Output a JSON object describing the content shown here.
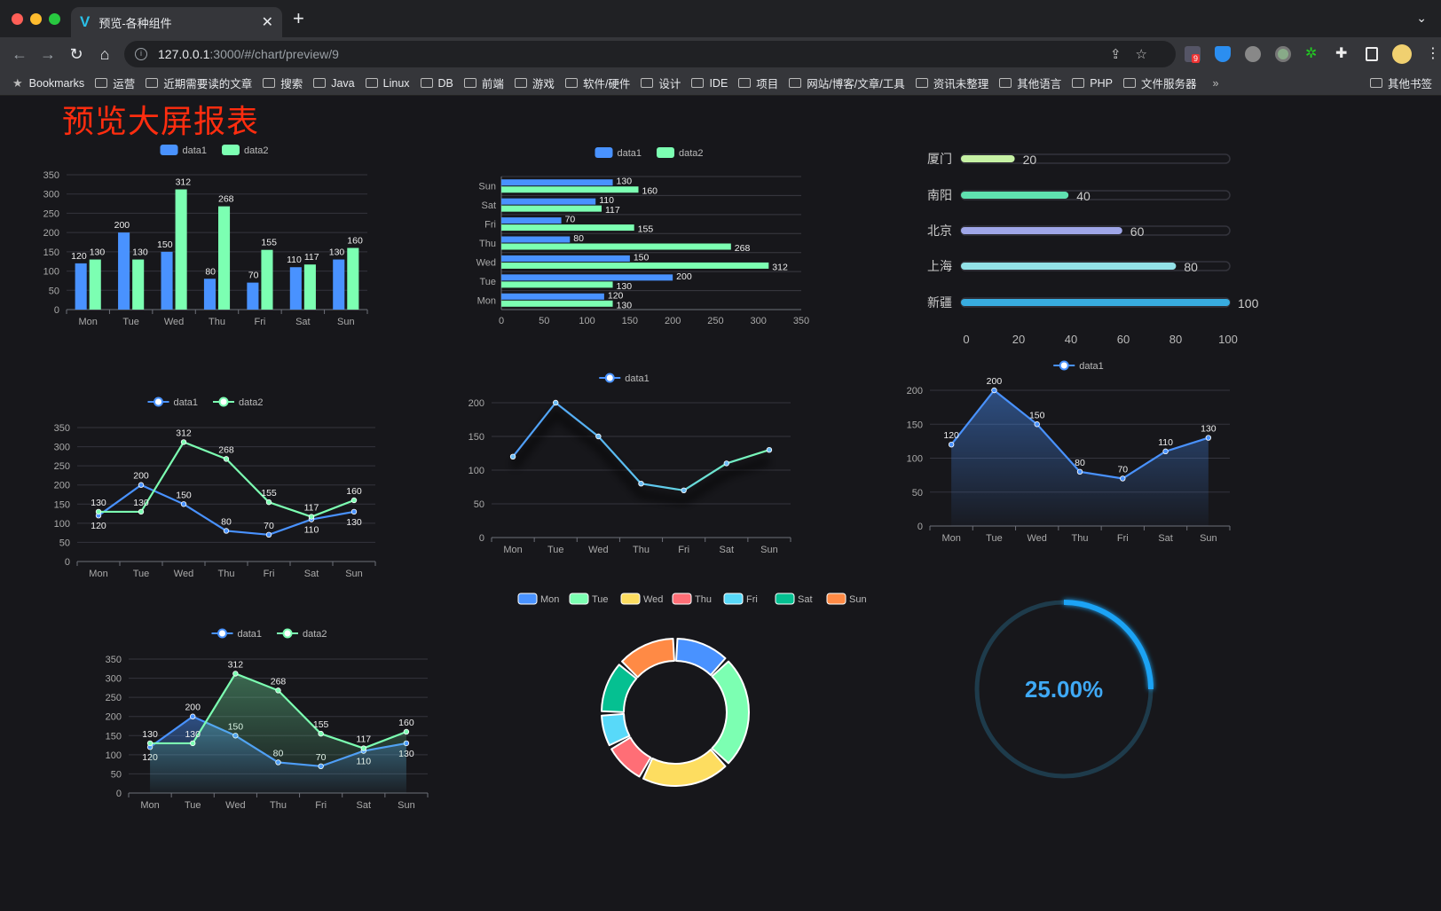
{
  "browser": {
    "tab_title": "预览-各种组件",
    "url_host": "127.0.0.1",
    "url_rest": ":3000/#/chart/preview/9",
    "extension_badge": "9",
    "bookmarks_label": "Bookmarks",
    "bookmarks": [
      "运营",
      "近期需要读的文章",
      "搜索",
      "Java",
      "Linux",
      "DB",
      "前端",
      "游戏",
      "软件/硬件",
      "设计",
      "IDE",
      "项目",
      "网站/博客/文章/工具",
      "资讯未整理",
      "其他语言",
      "PHP",
      "文件服务器"
    ],
    "more": "»",
    "other_bookmarks": "其他书签"
  },
  "page": {
    "title": "预览大屏报表"
  },
  "colors": {
    "data1": "#4992ff",
    "data2": "#7cffb2",
    "title": "#ff2d0f",
    "gauge": "#1aa3f5",
    "gauge_track": "#1e3b4b"
  },
  "chart_data": [
    {
      "type": "bar",
      "orientation": "vertical",
      "categories": [
        "Mon",
        "Tue",
        "Wed",
        "Thu",
        "Fri",
        "Sat",
        "Sun"
      ],
      "series": [
        {
          "name": "data1",
          "values": [
            120,
            200,
            150,
            80,
            70,
            110,
            130
          ]
        },
        {
          "name": "data2",
          "values": [
            130,
            130,
            312,
            268,
            155,
            117,
            160
          ]
        }
      ],
      "ylim": [
        0,
        350
      ],
      "yticks": [
        "0",
        "50",
        "100",
        "150",
        "200",
        "250",
        "300",
        "350"
      ],
      "legend": "top-center",
      "grid": true
    },
    {
      "type": "bar",
      "orientation": "horizontal",
      "categories": [
        "Mon",
        "Tue",
        "Wed",
        "Thu",
        "Fri",
        "Sat",
        "Sun"
      ],
      "series": [
        {
          "name": "data1",
          "values": [
            120,
            200,
            150,
            80,
            70,
            110,
            130
          ]
        },
        {
          "name": "data2",
          "values": [
            130,
            130,
            312,
            268,
            155,
            117,
            160
          ]
        }
      ],
      "xlim": [
        0,
        350
      ],
      "xticks": [
        "0",
        "50",
        "100",
        "150",
        "200",
        "250",
        "300",
        "350"
      ],
      "legend": "top-center",
      "grid": true
    },
    {
      "type": "bar",
      "orientation": "horizontal-progress",
      "categories": [
        "厦门",
        "南阳",
        "北京",
        "上海",
        "新疆"
      ],
      "values": [
        20,
        40,
        60,
        80,
        100
      ],
      "colors": [
        "#c6f1a4",
        "#5fe0b0",
        "#9fa6e8",
        "#93e2e8",
        "#38ace0"
      ],
      "xlim": [
        0,
        100
      ],
      "xticks": [
        "0",
        "20",
        "40",
        "60",
        "80",
        "100"
      ]
    },
    {
      "type": "line",
      "categories": [
        "Mon",
        "Tue",
        "Wed",
        "Thu",
        "Fri",
        "Sat",
        "Sun"
      ],
      "series": [
        {
          "name": "data1",
          "values": [
            120,
            200,
            150,
            80,
            70,
            110,
            130
          ]
        },
        {
          "name": "data2",
          "values": [
            130,
            130,
            312,
            268,
            155,
            117,
            160
          ]
        }
      ],
      "ylim": [
        0,
        350
      ],
      "yticks": [
        "0",
        "50",
        "100",
        "150",
        "200",
        "250",
        "300",
        "350"
      ],
      "legend": "top-center",
      "grid": true
    },
    {
      "type": "line",
      "categories": [
        "Mon",
        "Tue",
        "Wed",
        "Thu",
        "Fri",
        "Sat",
        "Sun"
      ],
      "series": [
        {
          "name": "data1",
          "values": [
            120,
            200,
            150,
            80,
            70,
            110,
            130
          ]
        }
      ],
      "ylim": [
        0,
        200
      ],
      "yticks": [
        "0",
        "50",
        "100",
        "150",
        "200"
      ],
      "legend": "top-center",
      "grid": true,
      "shadow": true
    },
    {
      "type": "area",
      "categories": [
        "Mon",
        "Tue",
        "Wed",
        "Thu",
        "Fri",
        "Sat",
        "Sun"
      ],
      "series": [
        {
          "name": "data1",
          "values": [
            120,
            200,
            150,
            80,
            70,
            110,
            130
          ]
        }
      ],
      "ylim": [
        0,
        200
      ],
      "yticks": [
        "0",
        "50",
        "100",
        "150",
        "200"
      ],
      "legend": "top-center",
      "grid": true
    },
    {
      "type": "area",
      "categories": [
        "Mon",
        "Tue",
        "Wed",
        "Thu",
        "Fri",
        "Sat",
        "Sun"
      ],
      "series": [
        {
          "name": "data1",
          "values": [
            120,
            200,
            150,
            80,
            70,
            110,
            130
          ]
        },
        {
          "name": "data2",
          "values": [
            130,
            130,
            312,
            268,
            155,
            117,
            160
          ]
        }
      ],
      "ylim": [
        0,
        350
      ],
      "yticks": [
        "0",
        "50",
        "100",
        "150",
        "200",
        "250",
        "300",
        "350"
      ],
      "legend": "top-center",
      "grid": true
    },
    {
      "type": "pie",
      "donut": true,
      "categories": [
        "Mon",
        "Tue",
        "Wed",
        "Thu",
        "Fri",
        "Sat",
        "Sun"
      ],
      "values": [
        130,
        265,
        210,
        100,
        80,
        125,
        140
      ],
      "colors": [
        "#4992ff",
        "#7cffb2",
        "#fddd60",
        "#ff6e76",
        "#58d9f9",
        "#05c091",
        "#ff8a45"
      ],
      "legend": "top-center"
    },
    {
      "type": "gauge",
      "value": 25,
      "max": 100,
      "label": "25.00%"
    }
  ]
}
